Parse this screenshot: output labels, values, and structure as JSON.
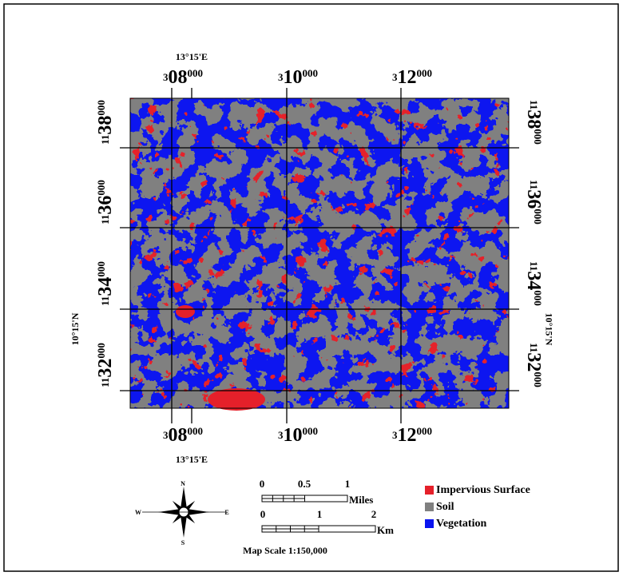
{
  "map": {
    "longitude_label": "13°15'E",
    "latitude_label": "10°15'N",
    "eastings": [
      {
        "small": "3",
        "big": "08",
        "sup": "000"
      },
      {
        "small": "3",
        "big": "10",
        "sup": "000"
      },
      {
        "small": "3",
        "big": "12",
        "sup": "000"
      }
    ],
    "northings": [
      {
        "small": "11",
        "big": "38",
        "sup": "000"
      },
      {
        "small": "11",
        "big": "36",
        "sup": "000"
      },
      {
        "small": "11",
        "big": "34",
        "sup": "000"
      },
      {
        "small": "11",
        "big": "32",
        "sup": "000"
      }
    ],
    "compass": {
      "n": "N",
      "s": "S",
      "e": "E",
      "w": "W"
    },
    "scale_bars": [
      {
        "ticks": [
          "0",
          "0.5",
          "1"
        ],
        "unit": "Miles"
      },
      {
        "ticks": [
          "0",
          "1",
          "2"
        ],
        "unit": "Km"
      }
    ],
    "scale_text": "Map Scale 1:150,000",
    "legend": [
      {
        "label": "Impervious Surface",
        "color": "#e5202a"
      },
      {
        "label": "Soil",
        "color": "#808080"
      },
      {
        "label": "Vegetation",
        "color": "#0a14f0"
      }
    ]
  }
}
